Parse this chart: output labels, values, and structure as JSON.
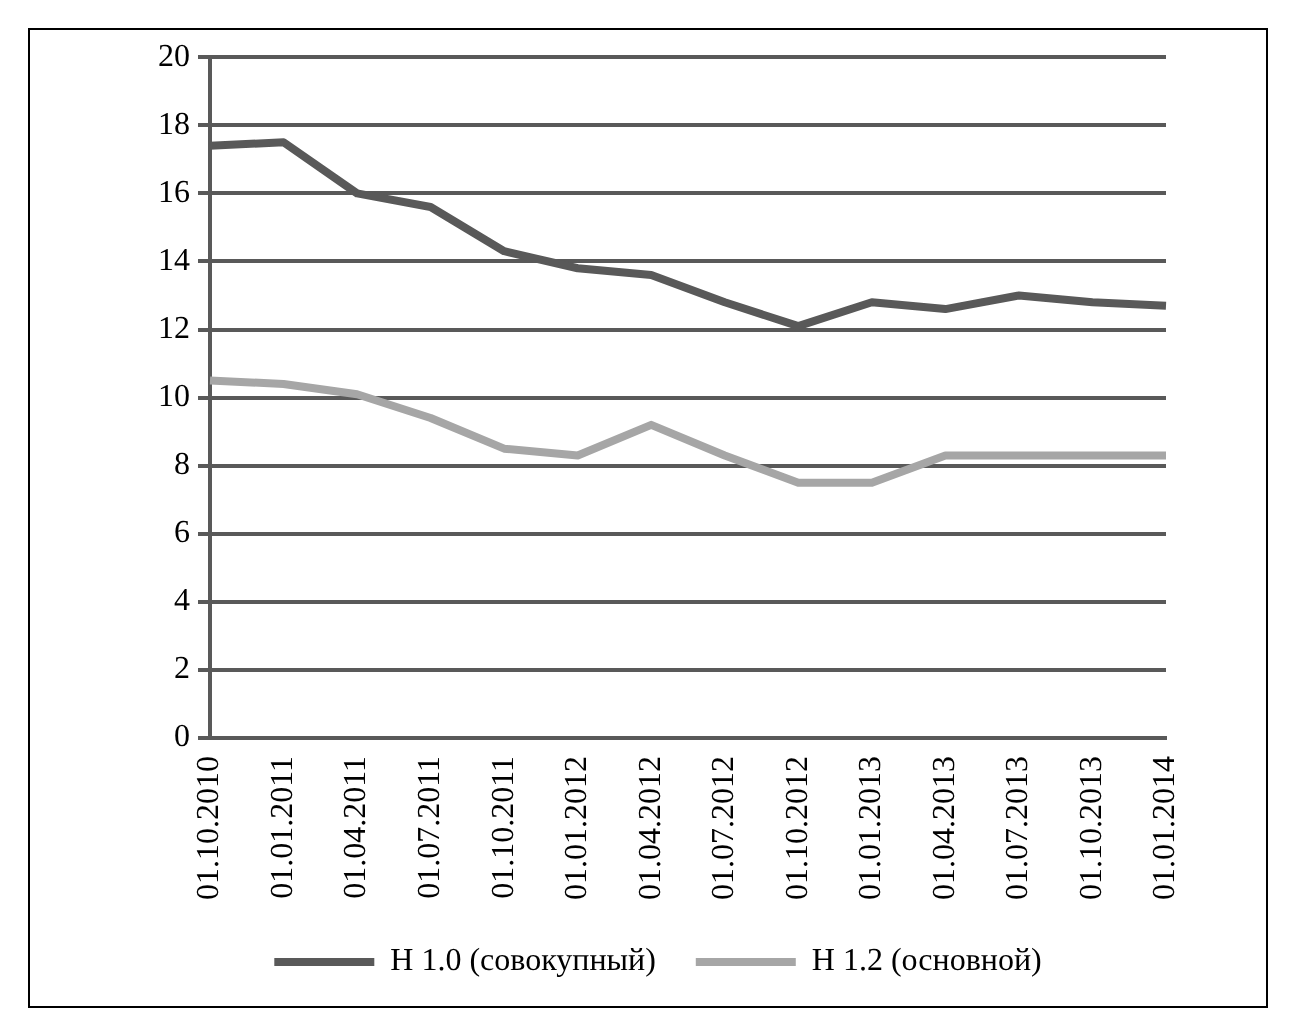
{
  "chart_data": {
    "type": "line",
    "categories": [
      "01.10.2010",
      "01.01.2011",
      "01.04.2011",
      "01.07.2011",
      "01.10.2011",
      "01.01.2012",
      "01.04.2012",
      "01.07.2012",
      "01.10.2012",
      "01.01.2013",
      "01.04.2013",
      "01.07.2013",
      "01.10.2013",
      "01.01.2014"
    ],
    "series": [
      {
        "name": "Н 1.0 (совокупный)",
        "color": "#595959",
        "values": [
          17.4,
          17.5,
          16.0,
          15.6,
          14.3,
          13.8,
          13.6,
          12.8,
          12.1,
          12.8,
          12.6,
          13.0,
          12.8,
          12.7
        ]
      },
      {
        "name": "Н 1.2 (основной)",
        "color": "#a6a6a6",
        "values": [
          10.5,
          10.4,
          10.1,
          9.4,
          8.5,
          8.3,
          9.2,
          8.3,
          7.5,
          7.5,
          8.3,
          8.3,
          8.3,
          8.3
        ]
      }
    ],
    "ylim": [
      0,
      20
    ],
    "yticks": [
      0,
      2,
      4,
      6,
      8,
      10,
      12,
      14,
      16,
      18,
      20
    ],
    "grid": "y",
    "legend": "bottom",
    "marker": "none",
    "line_style": "solid"
  }
}
